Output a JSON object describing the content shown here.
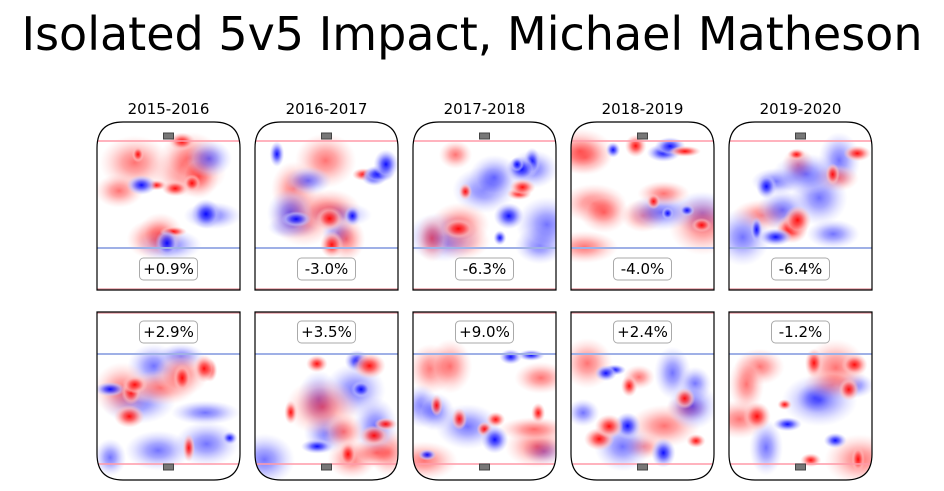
{
  "title": "Isolated 5v5 Impact, Michael Matheson",
  "chart_data": {
    "type": "heatmap",
    "title": "Isolated 5v5 Impact, Michael Matheson",
    "seasons": [
      "2015-2016",
      "2016-2017",
      "2017-2018",
      "2018-2019",
      "2019-2020"
    ],
    "rows": [
      {
        "position": "top",
        "values": [
          "+0.9%",
          "-3.0%",
          "-6.3%",
          "-4.0%",
          "-6.4%"
        ]
      },
      {
        "position": "bottom",
        "values": [
          "+2.9%",
          "+3.5%",
          "+9.0%",
          "+2.4%",
          "-1.2%"
        ]
      }
    ],
    "colors": {
      "positive": "#ff0000",
      "negative": "#0000ff",
      "neutral": "#ffffff"
    }
  }
}
